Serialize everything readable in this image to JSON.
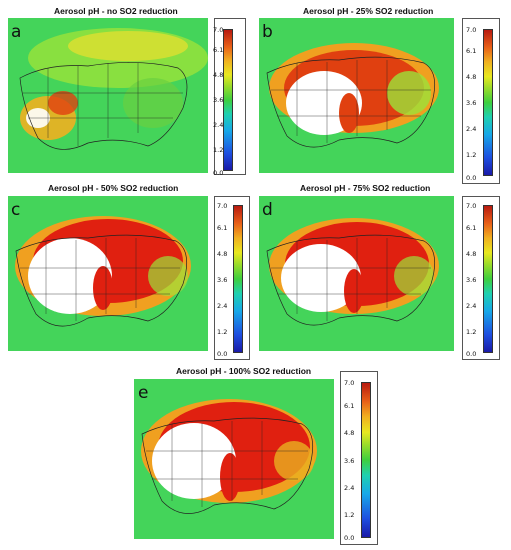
{
  "panels": [
    {
      "label": "a",
      "title": "Aerosol pH - no SO2 reduction"
    },
    {
      "label": "b",
      "title": "Aerosol pH - 25% SO2 reduction"
    },
    {
      "label": "c",
      "title": "Aerosol pH - 50% SO2 reduction"
    },
    {
      "label": "d",
      "title": "Aerosol pH - 75% SO2 reduction"
    },
    {
      "label": "e",
      "title": "Aerosol pH - 100% SO2 reduction"
    }
  ],
  "colorbar": {
    "ticks": [
      "7.0",
      "6.1",
      "4.8",
      "3.6",
      "2.4",
      "1.2",
      "0.0"
    ],
    "colors": [
      "#1a1aa8",
      "#1e4fe0",
      "#17a8e8",
      "#1fd0b0",
      "#3ecf3e",
      "#9bdc2a",
      "#e8e820",
      "#f0b020",
      "#e86018",
      "#b81a10"
    ]
  }
}
